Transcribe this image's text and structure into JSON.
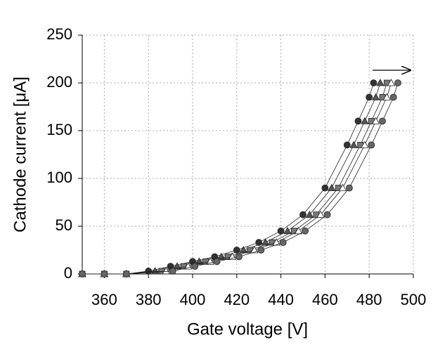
{
  "chart_data": {
    "type": "line",
    "x_label": "Gate voltage [V]",
    "y_label": "Cathode current [μA]",
    "xlim": [
      350,
      500
    ],
    "xticks": [
      360,
      380,
      400,
      420,
      440,
      460,
      480,
      500
    ],
    "ylim": [
      0,
      250
    ],
    "yticks": [
      0,
      50,
      100,
      150,
      200,
      250
    ],
    "grid": true,
    "series": [
      {
        "color": "#333333",
        "marker": "circle",
        "x": [
          350,
          360,
          370,
          380,
          390,
          400,
          410,
          420,
          430,
          440,
          450,
          460,
          470,
          475,
          480,
          482
        ],
        "values": [
          0,
          0,
          0,
          3,
          8,
          13,
          18,
          25,
          33,
          45,
          62,
          90,
          135,
          160,
          185,
          200
        ]
      },
      {
        "color": "#555555",
        "marker": "triangle",
        "x": [
          350,
          360,
          370,
          383,
          393,
          403,
          413,
          423,
          433,
          443,
          453,
          463,
          473,
          478,
          483,
          485
        ],
        "values": [
          0,
          0,
          0,
          3,
          8,
          13,
          18,
          25,
          33,
          45,
          62,
          90,
          135,
          160,
          185,
          200
        ]
      },
      {
        "color": "#777777",
        "marker": "square",
        "x": [
          350,
          360,
          370,
          386,
          396,
          406,
          416,
          426,
          436,
          446,
          456,
          466,
          476,
          481,
          486,
          488
        ],
        "values": [
          0,
          0,
          0,
          3,
          8,
          13,
          18,
          25,
          33,
          45,
          62,
          90,
          135,
          160,
          185,
          200
        ]
      },
      {
        "color": "#999999",
        "marker": "triangle",
        "x": [
          350,
          360,
          370,
          388,
          398,
          408,
          418,
          428,
          438,
          448,
          458,
          468,
          478,
          483,
          488,
          490
        ],
        "values": [
          0,
          0,
          0,
          3,
          8,
          13,
          18,
          25,
          33,
          45,
          62,
          90,
          135,
          160,
          185,
          200
        ]
      },
      {
        "color": "#666666",
        "marker": "circle",
        "x": [
          350,
          360,
          370,
          391,
          401,
          411,
          421,
          431,
          441,
          451,
          461,
          471,
          481,
          486,
          491,
          493
        ],
        "values": [
          0,
          0,
          0,
          3,
          8,
          13,
          18,
          25,
          33,
          45,
          62,
          90,
          135,
          160,
          185,
          200
        ]
      }
    ]
  }
}
